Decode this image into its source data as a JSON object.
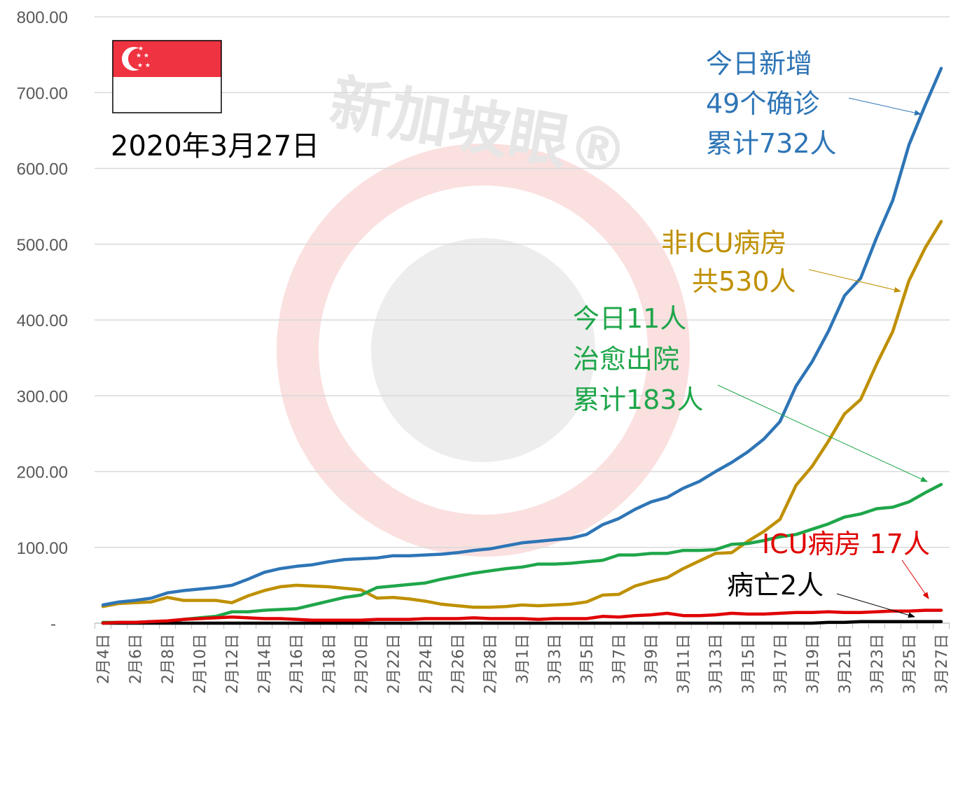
{
  "date_label": "2020年3月27日",
  "watermark": "新加坡眼®",
  "colors": {
    "confirmed": "#2e75b6",
    "non_icu": "#bf9000",
    "discharged": "#1fa64a",
    "icu": "#e00000",
    "deaths": "#000000",
    "flag_red": "#ef3340",
    "grid": "#d9d9d9",
    "axis_text": "#595959"
  },
  "annotations": {
    "confirmed": [
      "今日新增",
      "49个确诊",
      "累计732人"
    ],
    "non_icu": [
      "非ICU病房",
      "共530人"
    ],
    "discharged": [
      "今日11人",
      "治愈出院",
      "累计183人"
    ],
    "icu": [
      "ICU病房 17人"
    ],
    "deaths": [
      "病亡2人"
    ]
  },
  "chart_data": {
    "type": "line",
    "ylim": [
      0,
      800
    ],
    "yticks": [
      "-",
      "100.00",
      "200.00",
      "300.00",
      "400.00",
      "500.00",
      "600.00",
      "700.00",
      "800.00"
    ],
    "grid": true,
    "legend": "none",
    "x": [
      "2月4日",
      "2月5日",
      "2月6日",
      "2月7日",
      "2月8日",
      "2月9日",
      "2月10日",
      "2月11日",
      "2月12日",
      "2月13日",
      "2月14日",
      "2月15日",
      "2月16日",
      "2月17日",
      "2月18日",
      "2月19日",
      "2月20日",
      "2月21日",
      "2月22日",
      "2月23日",
      "2月24日",
      "2月25日",
      "2月26日",
      "2月27日",
      "2月28日",
      "2月29日",
      "3月1日",
      "3月2日",
      "3月3日",
      "3月4日",
      "3月5日",
      "3月6日",
      "3月7日",
      "3月8日",
      "3月9日",
      "3月10日",
      "3月11日",
      "3月12日",
      "3月13日",
      "3月14日",
      "3月15日",
      "3月16日",
      "3月17日",
      "3月18日",
      "3月19日",
      "3月20日",
      "3月21日",
      "3月22日",
      "3月23日",
      "3月24日",
      "3月25日",
      "3月26日",
      "3月27日"
    ],
    "xtick_labels": [
      "2月4日",
      "2月6日",
      "2月8日",
      "2月10日",
      "2月12日",
      "2月14日",
      "2月16日",
      "2月18日",
      "2月20日",
      "2月22日",
      "2月24日",
      "2月26日",
      "2月28日",
      "3月1日",
      "3月3日",
      "3月5日",
      "3月7日",
      "3月9日",
      "3月11日",
      "3月13日",
      "3月15日",
      "3月17日",
      "3月19日",
      "3月21日",
      "3月23日",
      "3月25日",
      "3月27日"
    ],
    "series": [
      {
        "key": "confirmed",
        "values": [
          24,
          28,
          30,
          33,
          40,
          43,
          45,
          47,
          50,
          58,
          67,
          72,
          75,
          77,
          81,
          84,
          85,
          86,
          89,
          89,
          90,
          91,
          93,
          96,
          98,
          102,
          106,
          108,
          110,
          112,
          117,
          130,
          138,
          150,
          160,
          166,
          178,
          187,
          200,
          212,
          226,
          243,
          266,
          313,
          345,
          385,
          432,
          455,
          509,
          558,
          631,
          683,
          732
        ]
      },
      {
        "key": "non_icu",
        "values": [
          22,
          26,
          27,
          28,
          34,
          30,
          30,
          30,
          27,
          36,
          43,
          48,
          50,
          49,
          48,
          46,
          44,
          33,
          34,
          32,
          29,
          25,
          23,
          21,
          21,
          22,
          24,
          23,
          24,
          25,
          28,
          37,
          38,
          49,
          55,
          60,
          72,
          82,
          92,
          93,
          108,
          121,
          137,
          182,
          207,
          240,
          276,
          295,
          342,
          385,
          452,
          495,
          530
        ]
      },
      {
        "key": "discharged",
        "values": [
          1,
          1,
          1,
          2,
          2,
          5,
          7,
          9,
          15,
          15,
          17,
          18,
          19,
          24,
          29,
          34,
          37,
          47,
          49,
          51,
          53,
          58,
          62,
          66,
          69,
          72,
          74,
          78,
          78,
          79,
          81,
          83,
          90,
          90,
          92,
          92,
          96,
          96,
          97,
          104,
          105,
          109,
          114,
          117,
          124,
          131,
          140,
          144,
          151,
          153,
          160,
          172,
          183
        ]
      },
      {
        "key": "icu",
        "values": [
          0,
          1,
          1,
          2,
          3,
          5,
          6,
          7,
          8,
          7,
          6,
          6,
          5,
          4,
          4,
          4,
          4,
          5,
          5,
          5,
          6,
          6,
          6,
          7,
          6,
          6,
          6,
          5,
          6,
          6,
          6,
          9,
          8,
          10,
          11,
          13,
          10,
          10,
          11,
          13,
          12,
          12,
          13,
          14,
          14,
          15,
          14,
          14,
          15,
          16,
          16,
          17,
          17
        ]
      },
      {
        "key": "deaths",
        "values": [
          0,
          0,
          0,
          0,
          0,
          0,
          0,
          0,
          0,
          0,
          0,
          0,
          0,
          0,
          0,
          0,
          0,
          0,
          0,
          0,
          0,
          0,
          0,
          0,
          0,
          0,
          0,
          0,
          0,
          0,
          0,
          0,
          0,
          0,
          0,
          0,
          0,
          0,
          0,
          0,
          0,
          0,
          0,
          0,
          0,
          1,
          1,
          2,
          2,
          2,
          2,
          2,
          2
        ]
      }
    ]
  }
}
